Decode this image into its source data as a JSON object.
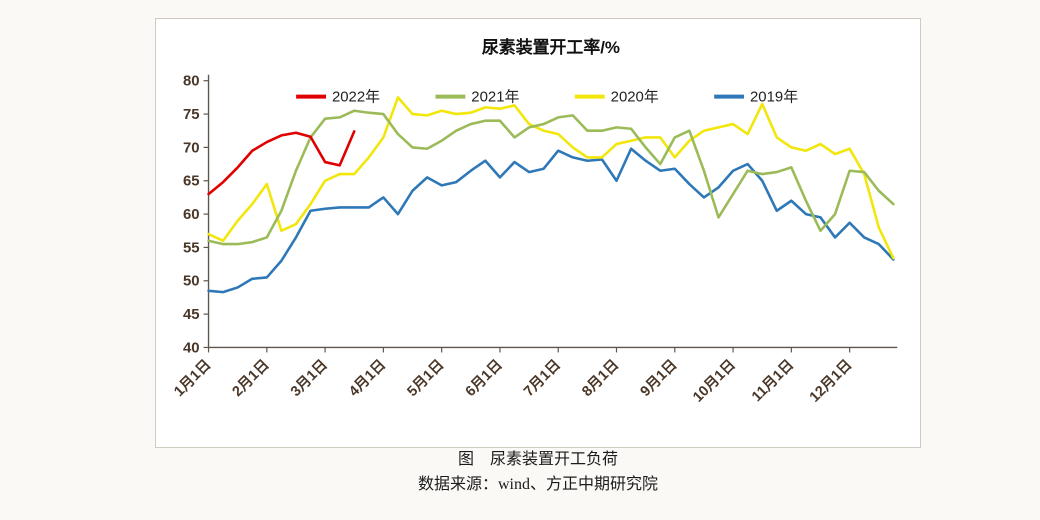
{
  "page": {
    "caption_line1": "图　尿素装置开工负荷",
    "caption_line2": "数据来源：wind、方正中期研究院"
  },
  "chart_data": {
    "type": "line",
    "title": "尿素装置开工率/%",
    "xlabel": "",
    "ylabel": "",
    "ylim": [
      40,
      80
    ],
    "ytick_step": 5,
    "grid": false,
    "legend_position": "top",
    "x_tick_labels": [
      "1月1日",
      "2月1日",
      "3月1日",
      "4月1日",
      "5月1日",
      "6月1日",
      "7月1日",
      "8月1日",
      "9月1日",
      "10月1日",
      "11月1日",
      "12月1日"
    ],
    "x_tick_positions": [
      0,
      4,
      8,
      12,
      16,
      20,
      24,
      28,
      32,
      36,
      40,
      44
    ],
    "x_max_index": 47,
    "colors": {
      "axis": "#5f574d",
      "tick_label": "#4a3728",
      "title": "#111111",
      "legend_text": "#222222"
    },
    "series": [
      {
        "name": "2022年",
        "color": "#e00000",
        "start_index": 0,
        "values": [
          63,
          64.8,
          67,
          69.5,
          70.8,
          71.8,
          72.2,
          71.6,
          67.8,
          67.3,
          72.4
        ]
      },
      {
        "name": "2021年",
        "color": "#9bbb59",
        "start_index": 0,
        "values": [
          56,
          55.5,
          55.5,
          55.8,
          56.5,
          60.5,
          66.5,
          71.5,
          74.3,
          74.5,
          75.5,
          75.2,
          75,
          72,
          70,
          69.8,
          71,
          72.5,
          73.5,
          74,
          74,
          71.5,
          73,
          73.5,
          74.5,
          74.8,
          72.5,
          72.5,
          73,
          72.8,
          70,
          67.5,
          71.5,
          72.5,
          66.5,
          59.5,
          63,
          66.5,
          66,
          66.3,
          67,
          62,
          57.5,
          60,
          66.5,
          66.3,
          63.5,
          61.5
        ]
      },
      {
        "name": "2020年",
        "color": "#f2e60a",
        "start_index": 0,
        "values": [
          57,
          56,
          59,
          61.5,
          64.5,
          57.5,
          58.5,
          61.5,
          65,
          66,
          66,
          68.5,
          71.5,
          77.5,
          75,
          74.8,
          75.5,
          75,
          75.2,
          76,
          75.8,
          76.3,
          73.5,
          72.5,
          72,
          70,
          68.5,
          68.5,
          70.5,
          71,
          71.5,
          71.5,
          68.5,
          71,
          72.5,
          73,
          73.5,
          72,
          76.5,
          71.5,
          70,
          69.5,
          70.5,
          69,
          69.8,
          66,
          58,
          53.4
        ]
      },
      {
        "name": "2019年",
        "color": "#2e78b7",
        "start_index": 0,
        "values": [
          48.5,
          48.3,
          49,
          50.3,
          50.5,
          53,
          56.5,
          60.5,
          60.8,
          61,
          61,
          61,
          62.5,
          60,
          63.5,
          65.5,
          64.3,
          64.8,
          66.5,
          68,
          65.5,
          67.8,
          66.3,
          66.8,
          69.5,
          68.5,
          68,
          68.2,
          65,
          69.8,
          68,
          66.5,
          66.8,
          64.5,
          62.5,
          64,
          66.5,
          67.5,
          65,
          60.5,
          62,
          60,
          59.5,
          56.5,
          58.7,
          56.5,
          55.5,
          53.2
        ]
      }
    ]
  }
}
